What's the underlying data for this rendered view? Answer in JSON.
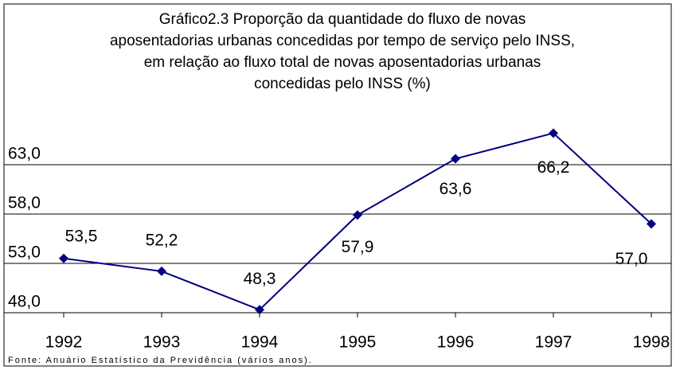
{
  "chart_data": {
    "type": "line",
    "title": [
      "Gráfico2.3 Proporção da quantidade do fluxo de novas",
      "aposentadorias urbanas concedidas por tempo de serviço pelo INSS,",
      "em relação ao fluxo total de novas aposentadorias urbanas",
      "concedidas pelo INSS (%)"
    ],
    "x": [
      1992,
      1993,
      1994,
      1995,
      1996,
      1997,
      1998
    ],
    "xlim": [
      1992,
      1998
    ],
    "xticks": [
      1992,
      1993,
      1994,
      1995,
      1996,
      1997,
      1998
    ],
    "series": [
      {
        "color": "#000080",
        "values": [
          53.5,
          52.2,
          48.3,
          57.9,
          63.6,
          66.2,
          57.0
        ],
        "value_labels": [
          "53,5",
          "52,2",
          "48,3",
          "57,9",
          "63,6",
          "66,2",
          "57,0"
        ]
      }
    ],
    "ylim": [
      48,
      68
    ],
    "yticks": [
      {
        "value": 48,
        "label": "48,0"
      },
      {
        "value": 53,
        "label": "53,0"
      },
      {
        "value": 58,
        "label": "58,0"
      },
      {
        "value": 63,
        "label": "63,0"
      }
    ],
    "grid": true,
    "source": "Fonte: Anuário Estatístico da Previdência (vários anos)."
  }
}
